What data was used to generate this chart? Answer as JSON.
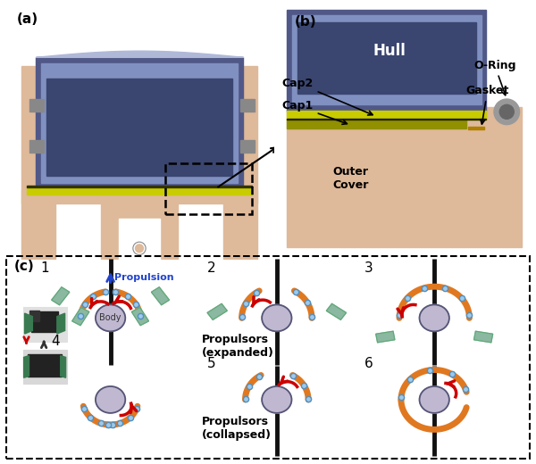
{
  "fig_width": 6.0,
  "fig_height": 5.2,
  "dpi": 100,
  "bg_color": "#ffffff",
  "panel_a_label": "(a)",
  "panel_b_label": "(b)",
  "panel_c_label": "(c)",
  "hull_label": "Hull",
  "cap2_label": "Cap2",
  "cap1_label": "Cap1",
  "outer_cover_label": "Outer\nCover",
  "oring_label": "O-Ring",
  "gasket_label": "Gasket",
  "propulsion_label": "Propulsion",
  "body_label": "Body",
  "propulsors_expanded_label": "Propulsors\n(expanded)",
  "propulsors_collapsed_label": "Propulsors\n(collapsed)",
  "skin_color": "#deb99a",
  "dark_blue": "#3a4570",
  "light_blue": "#8090c0",
  "mid_blue": "#505888",
  "yellow_cap": "#c8cc00",
  "body_circle_color": "#c0b8d0",
  "arm_color": "#e07820",
  "propulsor_color": "#8ab8a0",
  "arrow_red": "#cc0000",
  "stem_color": "#111111",
  "node_color": "#a0c8e8",
  "node_edge": "#5090c0"
}
